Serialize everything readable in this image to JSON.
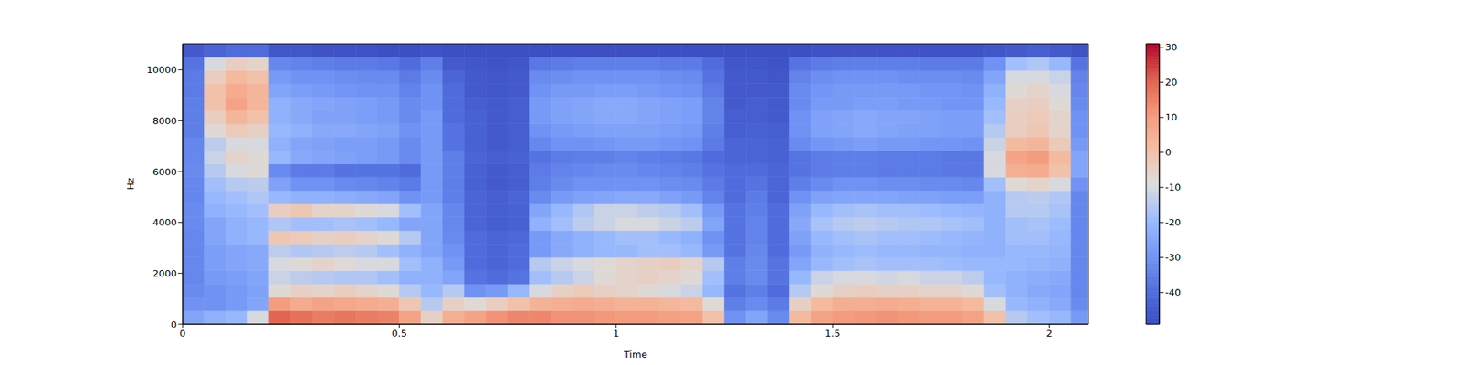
{
  "chart_data": {
    "type": "heatmap",
    "x_label": "Time",
    "y_label": "Hz",
    "xlim": [
      0,
      2.09
    ],
    "xticks": [
      0,
      0.5,
      1,
      1.5,
      2
    ],
    "ylim": [
      0,
      11025
    ],
    "yticks": [
      0,
      2000,
      4000,
      6000,
      8000,
      10000
    ],
    "x_edges": [
      0,
      0.05,
      0.1,
      0.15,
      0.2,
      0.25,
      0.3,
      0.35,
      0.4,
      0.45,
      0.5,
      0.55,
      0.6,
      0.65,
      0.7,
      0.75,
      0.8,
      0.85,
      0.9,
      0.95,
      1,
      1.05,
      1.1,
      1.15,
      1.2,
      1.25,
      1.3,
      1.35,
      1.4,
      1.45,
      1.5,
      1.55,
      1.6,
      1.65,
      1.7,
      1.75,
      1.8,
      1.85,
      1.9,
      1.95,
      2,
      2.05,
      2.09
    ],
    "y_edges": [
      0,
      525,
      1050,
      1575,
      2100,
      2625,
      3150,
      3675,
      4200,
      4725,
      5250,
      5775,
      6300,
      6825,
      7350,
      7875,
      8400,
      8925,
      9450,
      9975,
      10500,
      11025
    ],
    "cells": [
      [
        -25,
        -30,
        -32,
        -33,
        -33,
        -33,
        -33,
        -32,
        -32,
        -33,
        -33,
        -32,
        -33,
        -33,
        -35,
        -35,
        -35,
        -36,
        -36,
        -38,
        -45
      ],
      [
        -22,
        -30,
        -30,
        -28,
        -27,
        -27,
        -25,
        -25,
        -22,
        -20,
        -18,
        -15,
        -12,
        -14,
        -8,
        -4,
        0,
        0,
        -4,
        -10,
        -42
      ],
      [
        -20,
        -28,
        -28,
        -27,
        -25,
        -25,
        -22,
        -22,
        -20,
        -18,
        -15,
        -10,
        -6,
        -10,
        -3,
        3,
        8,
        6,
        2,
        -4,
        -40
      ],
      [
        -10,
        -25,
        -26,
        -25,
        -24,
        -24,
        -20,
        -20,
        -18,
        -16,
        -14,
        -8,
        -8,
        -10,
        -5,
        0,
        3,
        3,
        0,
        -6,
        -40
      ],
      [
        20,
        10,
        -8,
        -12,
        -10,
        -14,
        -2,
        -16,
        -4,
        -20,
        -26,
        -32,
        -20,
        -22,
        -20,
        -22,
        -22,
        -25,
        -28,
        -33,
        -46
      ],
      [
        18,
        6,
        -5,
        -14,
        -8,
        -16,
        -3,
        -18,
        -2,
        -22,
        -30,
        -36,
        -24,
        -25,
        -22,
        -24,
        -24,
        -27,
        -30,
        -34,
        -46
      ],
      [
        16,
        8,
        -6,
        -15,
        -6,
        -15,
        -5,
        -18,
        -6,
        -22,
        -30,
        -36,
        -25,
        -26,
        -24,
        -26,
        -25,
        -28,
        -30,
        -35,
        -47
      ],
      [
        17,
        7,
        -4,
        -16,
        -8,
        -14,
        -4,
        -17,
        -6,
        -23,
        -32,
        -38,
        -26,
        -27,
        -24,
        -26,
        -26,
        -29,
        -31,
        -36,
        -47
      ],
      [
        16,
        6,
        -6,
        -16,
        -10,
        -15,
        -6,
        -18,
        -8,
        -24,
        -33,
        -38,
        -27,
        -27,
        -25,
        -27,
        -27,
        -30,
        -32,
        -36,
        -47
      ],
      [
        15,
        5,
        -8,
        -18,
        -10,
        -18,
        -8,
        -20,
        -10,
        -25,
        -34,
        -38,
        -28,
        -28,
        -26,
        -28,
        -28,
        -30,
        -32,
        -37,
        -48
      ],
      [
        8,
        -2,
        -15,
        -22,
        -18,
        -22,
        -15,
        -25,
        -18,
        -30,
        -36,
        -40,
        -32,
        -32,
        -30,
        -32,
        -32,
        -34,
        -36,
        -40,
        -48
      ],
      [
        -5,
        -15,
        -20,
        -22,
        -22,
        -25,
        -25,
        -25,
        -25,
        -28,
        -28,
        -28,
        -28,
        -28,
        -28,
        -28,
        -30,
        -30,
        -32,
        -35,
        -47
      ],
      [
        5,
        -5,
        -15,
        -25,
        -28,
        -30,
        -32,
        -33,
        -33,
        -35,
        -35,
        -35,
        -35,
        -38,
        -38,
        -40,
        -40,
        -40,
        -42,
        -45,
        -48
      ],
      [
        8,
        -8,
        -30,
        -38,
        -40,
        -40,
        -40,
        -42,
        -42,
        -42,
        -43,
        -43,
        -42,
        -43,
        -43,
        -43,
        -44,
        -45,
        -45,
        -46,
        -48
      ],
      [
        12,
        -4,
        -28,
        -40,
        -42,
        -42,
        -42,
        -44,
        -44,
        -44,
        -45,
        -45,
        -44,
        -45,
        -45,
        -45,
        -45,
        -46,
        -46,
        -47,
        -48
      ],
      [
        14,
        0,
        -20,
        -38,
        -40,
        -40,
        -41,
        -43,
        -43,
        -42,
        -44,
        -44,
        -43,
        -44,
        -44,
        -44,
        -44,
        -45,
        -45,
        -46,
        -48
      ],
      [
        14,
        4,
        -10,
        -18,
        -15,
        -28,
        -28,
        -22,
        -25,
        -32,
        -35,
        -36,
        -38,
        -33,
        -30,
        -28,
        -28,
        -30,
        -32,
        -37,
        -48
      ],
      [
        12,
        5,
        -5,
        -15,
        -12,
        -24,
        -24,
        -18,
        -20,
        -28,
        -32,
        -34,
        -36,
        -30,
        -28,
        -26,
        -26,
        -28,
        -31,
        -36,
        -48
      ],
      [
        12,
        6,
        -3,
        -12,
        -10,
        -22,
        -22,
        -14,
        -16,
        -26,
        -30,
        -33,
        -35,
        -30,
        -27,
        -25,
        -25,
        -28,
        -30,
        -35,
        -48
      ],
      [
        11,
        5,
        -5,
        -8,
        -8,
        -20,
        -20,
        -12,
        -12,
        -25,
        -30,
        -32,
        -35,
        -29,
        -26,
        -24,
        -24,
        -27,
        -30,
        -35,
        -48
      ],
      [
        10,
        4,
        -6,
        -6,
        -6,
        -20,
        -18,
        -10,
        -12,
        -24,
        -30,
        -32,
        -34,
        -28,
        -26,
        -24,
        -24,
        -27,
        -30,
        -35,
        -48
      ],
      [
        10,
        4,
        -8,
        -5,
        -5,
        -18,
        -18,
        -10,
        -14,
        -24,
        -30,
        -33,
        -35,
        -28,
        -26,
        -25,
        -25,
        -28,
        -30,
        -35,
        -48
      ],
      [
        9,
        3,
        -10,
        -6,
        -4,
        -18,
        -20,
        -12,
        -15,
        -26,
        -31,
        -34,
        -36,
        -29,
        -27,
        -26,
        -26,
        -29,
        -31,
        -36,
        -48
      ],
      [
        8,
        2,
        -12,
        -8,
        -6,
        -20,
        -22,
        -14,
        -18,
        -28,
        -32,
        -35,
        -37,
        -30,
        -28,
        -27,
        -27,
        -30,
        -32,
        -36,
        -48
      ],
      [
        0,
        -8,
        -20,
        -18,
        -15,
        -28,
        -30,
        -25,
        -28,
        -34,
        -36,
        -38,
        -40,
        -36,
        -35,
        -34,
        -34,
        -36,
        -38,
        -40,
        -48
      ],
      [
        -30,
        -35,
        -38,
        -35,
        -35,
        -38,
        -38,
        -38,
        -38,
        -40,
        -40,
        -40,
        -42,
        -42,
        -44,
        -44,
        -45,
        -45,
        -45,
        -46,
        -48
      ],
      [
        -25,
        -32,
        -35,
        -32,
        -32,
        -33,
        -34,
        -34,
        -35,
        -36,
        -38,
        -40,
        -42,
        -42,
        -43,
        -44,
        -44,
        -45,
        -45,
        -46,
        -48
      ],
      [
        -32,
        -36,
        -40,
        -38,
        -38,
        -40,
        -40,
        -40,
        -40,
        -42,
        -42,
        -42,
        -43,
        -43,
        -44,
        -45,
        -45,
        -45,
        -46,
        -47,
        -48
      ],
      [
        2,
        -5,
        -15,
        -20,
        -25,
        -28,
        -26,
        -24,
        -26,
        -30,
        -35,
        -38,
        -38,
        -32,
        -30,
        -30,
        -32,
        -32,
        -34,
        -38,
        -48
      ],
      [
        8,
        2,
        -8,
        -12,
        -20,
        -22,
        -20,
        -17,
        -20,
        -26,
        -32,
        -36,
        -36,
        -29,
        -26,
        -26,
        -28,
        -29,
        -31,
        -36,
        -47
      ],
      [
        10,
        5,
        -5,
        -10,
        -18,
        -20,
        -18,
        -15,
        -18,
        -25,
        -30,
        -35,
        -35,
        -28,
        -25,
        -25,
        -28,
        -28,
        -30,
        -35,
        -47
      ],
      [
        11,
        5,
        -4,
        -10,
        -17,
        -19,
        -17,
        -14,
        -17,
        -25,
        -30,
        -35,
        -35,
        -27,
        -24,
        -24,
        -27,
        -28,
        -30,
        -35,
        -47
      ],
      [
        12,
        6,
        -5,
        -11,
        -18,
        -20,
        -18,
        -15,
        -18,
        -25,
        -31,
        -36,
        -36,
        -28,
        -25,
        -25,
        -27,
        -28,
        -30,
        -35,
        -47
      ],
      [
        11,
        5,
        -5,
        -10,
        -18,
        -20,
        -18,
        -16,
        -18,
        -26,
        -31,
        -36,
        -36,
        -28,
        -26,
        -25,
        -28,
        -28,
        -31,
        -35,
        -47
      ],
      [
        10,
        4,
        -6,
        -12,
        -18,
        -21,
        -19,
        -16,
        -19,
        -26,
        -32,
        -36,
        -36,
        -29,
        -26,
        -26,
        -28,
        -29,
        -31,
        -36,
        -47
      ],
      [
        10,
        4,
        -6,
        -12,
        -19,
        -21,
        -20,
        -17,
        -20,
        -27,
        -32,
        -37,
        -37,
        -29,
        -27,
        -27,
        -29,
        -29,
        -31,
        -36,
        -47
      ],
      [
        8,
        2,
        -8,
        -14,
        -20,
        -22,
        -21,
        -18,
        -21,
        -27,
        -33,
        -37,
        -37,
        -30,
        -27,
        -27,
        -29,
        -30,
        -32,
        -36,
        -47
      ],
      [
        0,
        -10,
        -18,
        -20,
        -20,
        -22,
        -22,
        -22,
        -22,
        -22,
        -18,
        -10,
        -10,
        -12,
        -15,
        -18,
        -20,
        -22,
        -25,
        -30,
        -46
      ],
      [
        -15,
        -20,
        -22,
        -22,
        -20,
        -20,
        -18,
        -18,
        -15,
        -15,
        -8,
        5,
        8,
        2,
        -4,
        -4,
        -5,
        -8,
        -10,
        -18,
        -45
      ],
      [
        -18,
        -22,
        -24,
        -23,
        -21,
        -20,
        -18,
        -17,
        -15,
        -14,
        -6,
        6,
        10,
        3,
        -2,
        -3,
        -4,
        -6,
        -10,
        -16,
        -44
      ],
      [
        -20,
        -24,
        -25,
        -24,
        -22,
        -21,
        -20,
        -19,
        -17,
        -16,
        -10,
        0,
        2,
        -3,
        -6,
        -6,
        -8,
        -10,
        -12,
        -20,
        -45
      ],
      [
        -28,
        -32,
        -33,
        -33,
        -33,
        -33,
        -33,
        -33,
        -33,
        -33,
        -30,
        -25,
        -25,
        -28,
        -30,
        -30,
        -32,
        -33,
        -34,
        -38,
        -47
      ]
    ],
    "colorbar": {
      "range": [
        -49,
        31
      ],
      "ticks": [
        -40,
        -30,
        -20,
        -10,
        0,
        10,
        20,
        30
      ]
    }
  }
}
